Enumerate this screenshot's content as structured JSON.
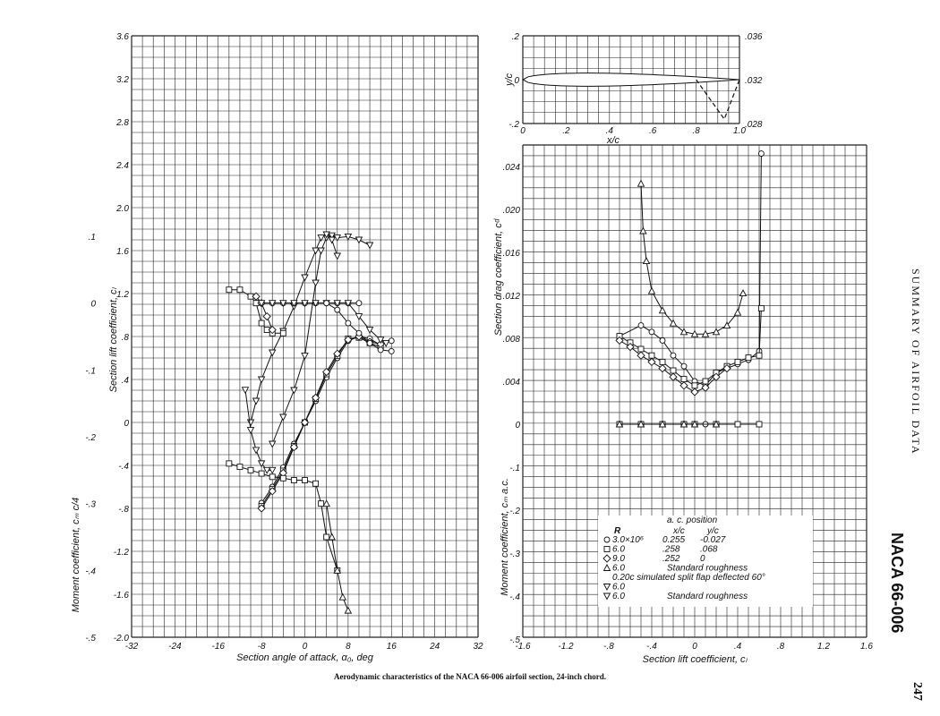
{
  "caption": "Aerodynamic characteristics of the NACA 66-006 airfoil section, 24-inch chord.",
  "side_title": "SUMMARY OF AIRFOIL DATA",
  "airfoil_name": "NACA 66-006",
  "page_number": "247",
  "chart_data": [
    {
      "type": "line",
      "xlabel": "Section angle of attack, α₀, deg",
      "ylabel": "Section lift coefficient, cₗ",
      "y2label": "Moment coefficient, cₘ c/4",
      "xlim": [
        -32,
        32
      ],
      "ylim": [
        -2.0,
        3.6
      ],
      "y2lim": [
        -0.5,
        0.4
      ],
      "x_ticks": [
        "-32",
        "-24",
        "-16",
        "-8",
        "0",
        "8",
        "16",
        "24",
        "32"
      ],
      "y_ticks": [
        "-2.0",
        "-1.6",
        "-1.2",
        "-.8",
        "-.4",
        "0",
        ".4",
        ".8",
        "1.2",
        "1.6",
        "2.0",
        "2.4",
        "2.8",
        "3.2",
        "3.6"
      ],
      "y2_ticks": [
        "-.5",
        "-.4",
        "-.3",
        "-.2",
        "-.1",
        "0",
        ".1"
      ],
      "grid": true,
      "series": [
        {
          "kind": "lift",
          "marker": "circle",
          "x": [
            -8,
            -6,
            -4,
            -2,
            0,
            2,
            4,
            6,
            8,
            10,
            12,
            14,
            16
          ],
          "y": [
            -0.75,
            -0.6,
            -0.42,
            -0.2,
            0.0,
            0.2,
            0.42,
            0.6,
            0.76,
            0.8,
            0.78,
            0.72,
            0.76
          ]
        },
        {
          "kind": "lift",
          "marker": "square",
          "x": [
            -8,
            -6,
            -4,
            -2,
            0,
            2,
            4,
            6,
            8,
            10,
            12,
            14
          ],
          "y": [
            -0.78,
            -0.62,
            -0.45,
            -0.22,
            0.0,
            0.22,
            0.45,
            0.62,
            0.78,
            0.79,
            0.74,
            0.7
          ]
        },
        {
          "kind": "lift",
          "marker": "diamond",
          "x": [
            -8,
            -6,
            -4,
            -2,
            0,
            2,
            4,
            6,
            8,
            10,
            12,
            14
          ],
          "y": [
            -0.8,
            -0.64,
            -0.47,
            -0.23,
            0.0,
            0.23,
            0.47,
            0.64,
            0.77,
            0.8,
            0.75,
            0.73
          ]
        },
        {
          "kind": "lift",
          "marker": "triangle-down",
          "x": [
            -6,
            -4,
            -2,
            0,
            2,
            3,
            4,
            5,
            6,
            8,
            10,
            12
          ],
          "y": [
            -0.2,
            0.05,
            0.3,
            0.62,
            1.3,
            1.6,
            1.72,
            1.74,
            1.72,
            1.73,
            1.7,
            1.65
          ]
        },
        {
          "kind": "lift",
          "marker": "triangle-down-open",
          "x": [
            -10,
            -9,
            -8,
            -6,
            -4,
            -2,
            0,
            2,
            3,
            4,
            5,
            6
          ],
          "y": [
            0.0,
            0.2,
            0.4,
            0.65,
            0.85,
            1.08,
            1.35,
            1.6,
            1.72,
            1.75,
            1.7,
            1.55
          ]
        },
        {
          "kind": "moment",
          "marker": "circle",
          "x": [
            -8,
            -6,
            -4,
            -2,
            0,
            2,
            4,
            6,
            8,
            10
          ],
          "y": [
            0.0,
            0.0,
            0.0,
            0.0,
            0.0,
            0.0,
            0.0,
            0.0,
            0.0,
            0.0
          ]
        },
        {
          "kind": "moment",
          "marker": "square",
          "x": [
            -14,
            -12,
            -10,
            -9,
            -8,
            -7,
            -6,
            -4
          ],
          "y": [
            0.02,
            0.02,
            0.01,
            0.0,
            -0.03,
            -0.04,
            -0.045,
            -0.045
          ]
        },
        {
          "kind": "moment",
          "marker": "diamond",
          "x": [
            -9,
            -8,
            -7,
            -6
          ],
          "y": [
            0.01,
            0.0,
            -0.02,
            -0.04
          ]
        },
        {
          "kind": "moment",
          "marker": "triangle-down",
          "x": [
            -8,
            -6,
            -4,
            -2,
            0,
            2,
            4,
            6,
            8,
            10,
            12,
            14,
            15
          ],
          "y": [
            0.0,
            0.0,
            0.0,
            0.0,
            0.0,
            0.0,
            0.0,
            0.0,
            0.0,
            -0.02,
            -0.04,
            -0.055,
            -0.06
          ]
        },
        {
          "kind": "moment",
          "marker": "circle-high",
          "x": [
            4,
            6,
            8,
            10,
            12,
            14,
            16
          ],
          "y": [
            0.0,
            -0.01,
            -0.03,
            -0.045,
            -0.06,
            -0.07,
            -0.072
          ]
        },
        {
          "kind": "moment",
          "marker": "square-low",
          "x": [
            -14,
            -12,
            -10,
            -8,
            -6,
            -4,
            -2,
            0,
            2,
            3,
            4,
            6
          ],
          "y": [
            -0.24,
            -0.245,
            -0.25,
            -0.255,
            -0.26,
            -0.262,
            -0.265,
            -0.265,
            -0.27,
            -0.3,
            -0.35,
            -0.4
          ]
        },
        {
          "kind": "moment",
          "marker": "triangle-low",
          "x": [
            4,
            5,
            6,
            7,
            8
          ],
          "y": [
            -0.3,
            -0.35,
            -0.4,
            -0.44,
            -0.46
          ]
        },
        {
          "kind": "moment",
          "marker": "triangle-down-open",
          "x": [
            -11,
            -10,
            -9,
            -8,
            -7,
            -6
          ],
          "y": [
            -0.13,
            -0.19,
            -0.22,
            -0.24,
            -0.25,
            -0.25
          ]
        }
      ]
    },
    {
      "type": "line",
      "xlabel": "Section lift coefficient, cₗ",
      "ylabel": "Section drag coefficient, cᵈ",
      "y2label": "Moment coefficient, cₘ a.c.",
      "xlim": [
        -1.6,
        1.6
      ],
      "ylim": [
        0,
        0.024
      ],
      "y2lim": [
        -0.5,
        0.0
      ],
      "x_ticks": [
        "-1.6",
        "-1.2",
        "-.8",
        "-.4",
        "0",
        ".4",
        ".8",
        "1.2",
        "1.6"
      ],
      "y_ticks": [
        "0",
        ".004",
        ".008",
        ".012",
        ".016",
        ".020",
        ".024"
      ],
      "y2_ticks": [
        "-.5",
        "-.4",
        "-.3",
        "-.2",
        "-.1"
      ],
      "grid": true,
      "series": [
        {
          "name": "3.0×10⁶",
          "kind": "drag",
          "marker": "circle",
          "x": [
            -0.7,
            -0.5,
            -0.4,
            -0.3,
            -0.2,
            -0.1,
            0,
            0.1,
            0.2,
            0.3,
            0.4,
            0.5,
            0.6,
            0.62
          ],
          "y": [
            0.0082,
            0.0092,
            0.0086,
            0.0078,
            0.0064,
            0.0054,
            0.004,
            0.0036,
            0.0048,
            0.0052,
            0.0056,
            0.006,
            0.0068,
            0.0252
          ]
        },
        {
          "name": "6.0",
          "kind": "drag",
          "marker": "square",
          "x": [
            -0.7,
            -0.6,
            -0.5,
            -0.4,
            -0.3,
            -0.2,
            -0.1,
            0,
            0.1,
            0.2,
            0.3,
            0.4,
            0.5,
            0.6,
            0.62
          ],
          "y": [
            0.0082,
            0.0076,
            0.007,
            0.0064,
            0.0058,
            0.005,
            0.0042,
            0.0036,
            0.004,
            0.0048,
            0.0054,
            0.0058,
            0.0062,
            0.0064,
            0.0108
          ]
        },
        {
          "name": "9.0",
          "kind": "drag",
          "marker": "diamond",
          "x": [
            -0.7,
            -0.6,
            -0.5,
            -0.4,
            -0.3,
            -0.2,
            -0.1,
            0,
            0.1,
            0.2,
            0.3
          ],
          "y": [
            0.0078,
            0.0072,
            0.0064,
            0.0058,
            0.0052,
            0.0044,
            0.0036,
            0.003,
            0.0034,
            0.0044,
            0.0052
          ]
        },
        {
          "name": "6.0 Standard roughness",
          "kind": "drag",
          "marker": "triangle",
          "x": [
            -0.5,
            -0.48,
            -0.45,
            -0.4,
            -0.3,
            -0.2,
            -0.1,
            0,
            0.1,
            0.2,
            0.3,
            0.4,
            0.45
          ],
          "y": [
            0.0224,
            0.018,
            0.0152,
            0.0124,
            0.0106,
            0.0094,
            0.0086,
            0.0084,
            0.0084,
            0.0086,
            0.0092,
            0.0104,
            0.0122
          ]
        },
        {
          "kind": "moment",
          "marker": "circle",
          "x": [
            -0.7,
            -0.5,
            -0.3,
            -0.1,
            0,
            0.1,
            0.2,
            0.4,
            0.6
          ],
          "y": [
            0.0,
            0.0,
            0.0,
            0.0,
            0.0,
            0.0,
            0.0,
            0.0,
            0.0
          ]
        },
        {
          "kind": "moment",
          "marker": "square",
          "x": [
            -0.7,
            -0.5,
            -0.3,
            -0.1,
            0,
            0.2,
            0.4,
            0.6
          ],
          "y": [
            0.0,
            0.0,
            0.0,
            0.0,
            0.0,
            0.0,
            0.0,
            0.0
          ]
        },
        {
          "kind": "moment",
          "marker": "triangle",
          "x": [
            -0.7,
            -0.5,
            -0.3,
            -0.1,
            0,
            0.2
          ],
          "y": [
            0.0,
            0.0,
            0.0,
            0.0,
            0.0,
            0.0
          ]
        }
      ],
      "legend": {
        "placement": "bottom-right",
        "col_r": "R",
        "header_ac": "a. c. position",
        "col_xc": "x/c",
        "col_yc": "y/c",
        "rows": [
          {
            "marker": "circle",
            "r": "3.0×10⁶",
            "xc": "0.255",
            "yc": "-0.027"
          },
          {
            "marker": "square",
            "r": "6.0",
            "xc": ".258",
            "yc": ".068"
          },
          {
            "marker": "diamond",
            "r": "9.0",
            "xc": ".252",
            "yc": "0"
          },
          {
            "marker": "triangle",
            "r": "6.0",
            "note": "Standard roughness"
          },
          {
            "marker": "none",
            "r": "",
            "note": "0.20c simulated split flap deflected 60°"
          },
          {
            "marker": "triangle-down",
            "r": "6.0",
            "note": ""
          },
          {
            "marker": "triangle-down-open",
            "r": "6.0",
            "note": "Standard roughness"
          }
        ]
      }
    },
    {
      "type": "line",
      "xlabel": "x/c",
      "ylabel": "y/c",
      "xlim": [
        0,
        1.0
      ],
      "ylim": [
        -0.2,
        0.2
      ],
      "x_ticks": [
        "0",
        ".2",
        ".4",
        ".6",
        ".8",
        "1.0"
      ],
      "y_ticks": [
        "-.2",
        "0",
        ".2"
      ],
      "right_ticks": [
        ".036",
        ".032",
        ".028"
      ],
      "grid": true,
      "airfoil_thickness": 0.06,
      "flap": {
        "hinge": 0.8,
        "tip_x": 0.93,
        "tip_y": -0.18
      }
    }
  ]
}
